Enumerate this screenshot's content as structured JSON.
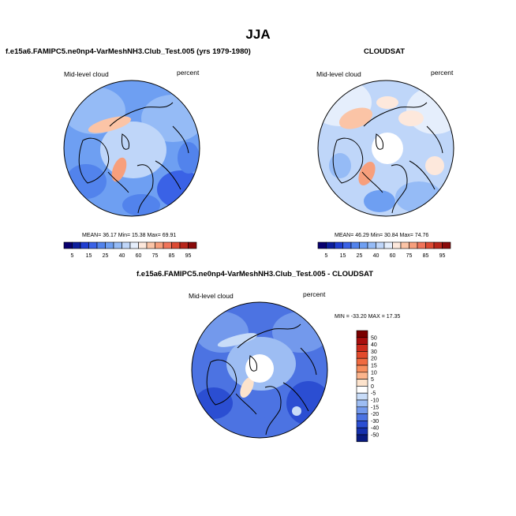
{
  "page": {
    "title": "JJA"
  },
  "chart_data": [
    {
      "type": "heatmap",
      "projection": "north polar stereographic",
      "title": "f.e15a6.FAMIPC5.ne0np4-VarMeshNH3.Club_Test.005 (yrs 1979-1980)",
      "left_label": "Mid-level cloud",
      "right_label": "percent",
      "stats_text": "MEAN= 36.17  Min= 15.38  Max= 69.91",
      "stats": {
        "mean": 36.17,
        "min": 15.38,
        "max": 69.91
      },
      "colorbar": {
        "orientation": "horizontal",
        "levels": [
          5,
          10,
          15,
          20,
          25,
          30,
          40,
          50,
          60,
          70,
          75,
          80,
          85,
          90,
          95
        ],
        "tick_labels": [
          "5",
          "15",
          "25",
          "40",
          "60",
          "75",
          "85",
          "95"
        ],
        "colors": [
          "#08006e",
          "#0c1e9c",
          "#1f3ed0",
          "#3a62e6",
          "#5283ec",
          "#6e9ff2",
          "#95bbf6",
          "#bfd6f9",
          "#e5eefc",
          "#fde8dc",
          "#fbc4a6",
          "#f79f7c",
          "#f0745a",
          "#dc4a33",
          "#b8261b",
          "#8a0b0b"
        ]
      }
    },
    {
      "type": "heatmap",
      "projection": "north polar stereographic",
      "title": "CLOUDSAT",
      "left_label": "Mid-level cloud",
      "right_label": "percent",
      "stats_text": "MEAN= 46.29  Min= 30.84  Max= 74.76",
      "stats": {
        "mean": 46.29,
        "min": 30.84,
        "max": 74.76
      },
      "colorbar": {
        "orientation": "horizontal",
        "levels": [
          5,
          10,
          15,
          20,
          25,
          30,
          40,
          50,
          60,
          70,
          75,
          80,
          85,
          90,
          95
        ],
        "tick_labels": [
          "5",
          "15",
          "25",
          "40",
          "60",
          "75",
          "85",
          "95"
        ],
        "colors": [
          "#08006e",
          "#0c1e9c",
          "#1f3ed0",
          "#3a62e6",
          "#5283ec",
          "#6e9ff2",
          "#95bbf6",
          "#bfd6f9",
          "#e5eefc",
          "#fde8dc",
          "#fbc4a6",
          "#f79f7c",
          "#f0745a",
          "#dc4a33",
          "#b8261b",
          "#8a0b0b"
        ]
      }
    },
    {
      "type": "heatmap",
      "projection": "north polar stereographic",
      "title": "f.e15a6.FAMIPC5.ne0np4-VarMeshNH3.Club_Test.005 - CLOUDSAT",
      "left_label": "Mid-level cloud",
      "right_label": "percent",
      "stats_text": "MIN = -33.20 MAX =  17.35",
      "stats": {
        "min": -33.2,
        "max": 17.35
      },
      "colorbar": {
        "orientation": "vertical",
        "tick_labels": [
          "50",
          "40",
          "30",
          "20",
          "15",
          "10",
          "5",
          "0",
          "-5",
          "-10",
          "-15",
          "-20",
          "-30",
          "-40",
          "-50"
        ],
        "colors_top_to_bottom": [
          "#7a0000",
          "#a80d0d",
          "#cc2a1c",
          "#e24a2c",
          "#f06a40",
          "#f78e5e",
          "#fbb48c",
          "#fde3cc",
          "#ffffff",
          "#c8dcf8",
          "#9dbdf3",
          "#7399ec",
          "#4c73e2",
          "#2b4ed2",
          "#1530ad",
          "#081a80"
        ]
      }
    }
  ]
}
